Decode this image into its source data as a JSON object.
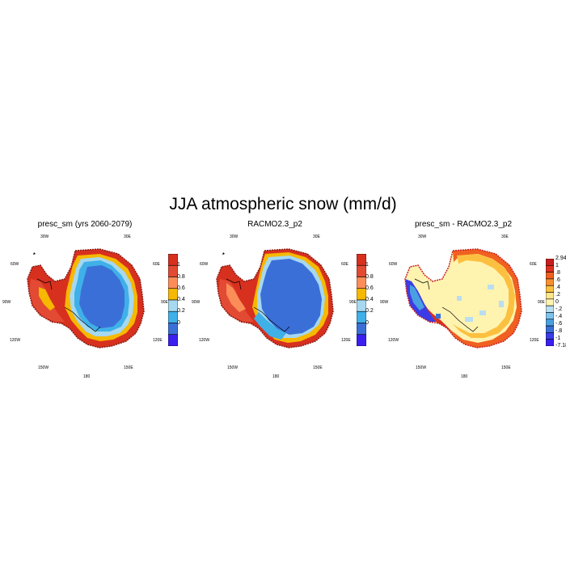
{
  "title": "JJA atmospheric snow (mm/d)",
  "panels": [
    {
      "title": "presc_sm (yrs 2060-2079)",
      "colorbar": {
        "labels": [
          "1",
          "0.8",
          "0.6",
          "0.4",
          "0.2",
          "0"
        ],
        "colors": [
          "#d7301f",
          "#e34a33",
          "#fc8d59",
          "#f6b800",
          "#a6d8ef",
          "#3fb0e8",
          "#3b6fd8",
          "#3b1ff0"
        ]
      }
    },
    {
      "title": "RACMO2.3_p2",
      "colorbar": {
        "labels": [
          "1",
          "0.8",
          "0.6",
          "0.4",
          "0.2",
          "0"
        ],
        "colors": [
          "#d7301f",
          "#e34a33",
          "#fc8d59",
          "#f6b800",
          "#a6d8ef",
          "#3fb0e8",
          "#3b6fd8",
          "#3b1ff0"
        ]
      }
    },
    {
      "title": "presc_sm - RACMO2.3_p2",
      "colorbar": {
        "labels": [
          "2.94",
          "1",
          ".8",
          ".6",
          ".4",
          ".2",
          "0",
          "-.2",
          "-.4",
          "-.6",
          "-.8",
          "-1",
          "-7.18"
        ],
        "colors": [
          "#c81e1e",
          "#e03020",
          "#f06020",
          "#f89030",
          "#fcc040",
          "#fde68a",
          "#fff3b0",
          "#b9def2",
          "#7cc4ee",
          "#4a9fe0",
          "#3a6fd8",
          "#3b3ce8",
          "#3b1ff0"
        ]
      }
    }
  ],
  "lon_labels": [
    "30W",
    "30E",
    "60W",
    "60E",
    "90W",
    "90E",
    "120W",
    "120E",
    "150W",
    "150E",
    "180"
  ]
}
